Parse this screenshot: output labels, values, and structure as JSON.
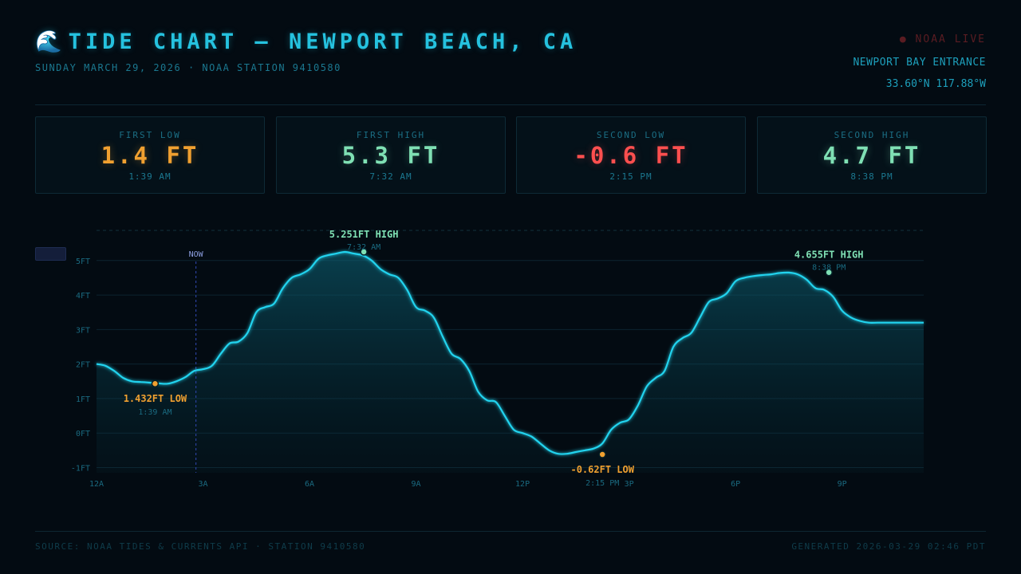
{
  "header": {
    "icon": "wave-icon",
    "icon_glyph": "🌊",
    "title": "TIDE CHART — NEWPORT BEACH, CA",
    "subtitle": "SUNDAY MARCH 29, 2026 · NOAA STATION 9410580",
    "live": "● NOAA LIVE",
    "station_name": "NEWPORT BAY ENTRANCE",
    "coords": "33.60°N 117.88°W"
  },
  "cards": [
    {
      "label": "FIRST LOW",
      "value": "1.4 FT",
      "time": "1:39 AM",
      "color": "#f0a030"
    },
    {
      "label": "FIRST HIGH",
      "value": "5.3 FT",
      "time": "7:32 AM",
      "color": "#7fe0b4"
    },
    {
      "label": "SECOND LOW",
      "value": "-0.6 FT",
      "time": "2:15 PM",
      "color": "#ff4f4f"
    },
    {
      "label": "SECOND HIGH",
      "value": "4.7 FT",
      "time": "8:38 PM",
      "color": "#7fe0b4"
    }
  ],
  "footer": {
    "source": "SOURCE: NOAA TIDES & CURRENTS API · STATION 9410580",
    "generated": "GENERATED 2026-03-29 02:46 PDT"
  },
  "colors": {
    "line": "#22d3ee",
    "low": "#f0a030",
    "high": "#7fe0b4",
    "now": "#2a3f9a",
    "grid": "#0c2430"
  },
  "chart_data": {
    "type": "area",
    "xlim": [
      0,
      23.3
    ],
    "ylim": [
      -1.15,
      5.85
    ],
    "y_ticks": [
      -1,
      0,
      1,
      2,
      3,
      4,
      5
    ],
    "y_tick_labels": [
      "-1FT",
      "0FT",
      "1FT",
      "2FT",
      "3FT",
      "4FT",
      "5FT"
    ],
    "x_ticks": [
      0,
      3,
      6,
      9,
      12,
      15,
      18,
      21
    ],
    "x_tick_labels": [
      "12A",
      "3A",
      "6A",
      "9A",
      "12P",
      "3P",
      "6P",
      "9P"
    ],
    "grid": true,
    "now": {
      "x": 2.8,
      "label": "NOW"
    },
    "series": [
      {
        "x": [
          0,
          0.25,
          0.5,
          0.75,
          1.0,
          1.25,
          1.5,
          1.75,
          2.0,
          2.25,
          2.5,
          2.75,
          3.0,
          3.25,
          3.5,
          3.75,
          4.0,
          4.25,
          4.5,
          4.75,
          5.0,
          5.25,
          5.5,
          5.75,
          6.0,
          6.25,
          6.5,
          6.75,
          7.0,
          7.25,
          7.5,
          7.75,
          8.0,
          8.25,
          8.5,
          8.75,
          9.0,
          9.25,
          9.5,
          9.75,
          10.0,
          10.25,
          10.5,
          10.75,
          11.0,
          11.25,
          11.5,
          11.75,
          12.0,
          12.25,
          12.5,
          12.75,
          13.0,
          13.25,
          13.5,
          13.75,
          14.0,
          14.25,
          14.5,
          14.75,
          15.0,
          15.25,
          15.5,
          15.75,
          16.0,
          16.25,
          16.5,
          16.75,
          17.0,
          17.25,
          17.5,
          17.75,
          18.0,
          18.25,
          18.5,
          18.75,
          19.0,
          19.25,
          19.5,
          19.75,
          20.0,
          20.25,
          20.5,
          20.75,
          21.0,
          21.25,
          21.5,
          21.75,
          22.0,
          22.25,
          22.5,
          22.75,
          23.0,
          23.3
        ],
        "y": [
          2.0,
          1.95,
          1.8,
          1.6,
          1.5,
          1.48,
          1.46,
          1.44,
          1.43,
          1.5,
          1.62,
          1.8,
          1.85,
          1.95,
          2.3,
          2.6,
          2.65,
          2.9,
          3.5,
          3.65,
          3.75,
          4.2,
          4.5,
          4.6,
          4.75,
          5.05,
          5.15,
          5.2,
          5.25,
          5.2,
          5.15,
          5.0,
          4.75,
          4.6,
          4.5,
          4.15,
          3.65,
          3.55,
          3.35,
          2.8,
          2.3,
          2.15,
          1.8,
          1.2,
          0.95,
          0.9,
          0.5,
          0.1,
          0.0,
          -0.1,
          -0.3,
          -0.5,
          -0.6,
          -0.6,
          -0.55,
          -0.5,
          -0.45,
          -0.3,
          0.1,
          0.3,
          0.4,
          0.8,
          1.35,
          1.6,
          1.8,
          2.5,
          2.75,
          2.9,
          3.35,
          3.8,
          3.9,
          4.05,
          4.4,
          4.5,
          4.55,
          4.58,
          4.6,
          4.64,
          4.65,
          4.6,
          4.45,
          4.2,
          4.15,
          3.95,
          3.55,
          3.35,
          3.25,
          3.2,
          3.2,
          3.2,
          3.2,
          3.2,
          3.2,
          3.2
        ]
      }
    ],
    "annotations": [
      {
        "x": 1.65,
        "y": 1.432,
        "label": "1.432FT LOW",
        "time": "1:39 AM",
        "kind": "low",
        "place": "below"
      },
      {
        "x": 7.53,
        "y": 5.251,
        "label": "5.251FT HIGH",
        "time": "7:32 AM",
        "kind": "high",
        "place": "above"
      },
      {
        "x": 14.25,
        "y": -0.62,
        "label": "-0.62FT LOW",
        "time": "2:15 PM",
        "kind": "low",
        "place": "below"
      },
      {
        "x": 20.63,
        "y": 4.655,
        "label": "4.655FT HIGH",
        "time": "8:38 PM",
        "kind": "high",
        "place": "above"
      }
    ]
  }
}
